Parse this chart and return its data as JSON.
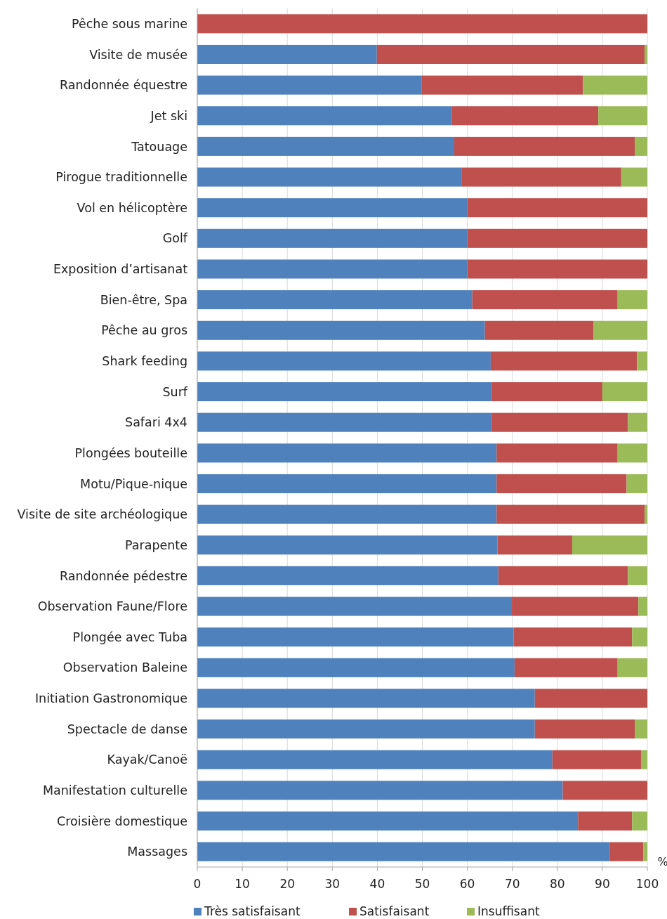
{
  "chart_data": {
    "type": "bar",
    "orientation": "horizontal",
    "stacked": true,
    "xlabel": "%",
    "categories": [
      "Pêche sous marine",
      "Visite de musée",
      "Randonnée équestre",
      "Jet ski",
      "Tatouage",
      "Pirogue traditionnelle",
      "Vol en hélicoptère",
      "Golf",
      "Exposition d’artisanat",
      "Bien-être, Spa",
      "Pêche au gros",
      "Shark feeding",
      "Surf",
      "Safari 4x4",
      "Plongées bouteille",
      "Motu/Pique-nique",
      "Visite de site archéologique",
      "Parapente",
      "Randonnée pédestre",
      "Observation Faune/Flore",
      "Plongée avec Tuba",
      "Observation Baleine",
      "Initiation Gastronomique",
      "Spectacle de danse",
      "Kayak/Canoë",
      "Manifestation culturelle",
      "Croisière domestique",
      "Massages"
    ],
    "series": [
      {
        "name": "Très satisfaisant",
        "color": "#4f81bd",
        "values": [
          0,
          39.9,
          49.9,
          56.6,
          57.1,
          58.8,
          60,
          60,
          60,
          61.1,
          63.9,
          65.2,
          65.4,
          65.4,
          66.5,
          66.5,
          66.5,
          66.7,
          66.9,
          69.9,
          70.3,
          70.5,
          75,
          75,
          78.9,
          81.2,
          84.6,
          91.7
        ]
      },
      {
        "name": "Satisfaisant",
        "color": "#c0504d",
        "values": [
          100,
          59.5,
          35.8,
          32.5,
          40.1,
          35.4,
          40,
          40,
          40,
          32.3,
          24.1,
          32.5,
          24.6,
          30.3,
          26.9,
          28.9,
          32.9,
          16.6,
          28.8,
          28.1,
          26.3,
          22.9,
          25,
          22.2,
          19.7,
          18.8,
          12.0,
          7.4
        ]
      },
      {
        "name": "Insuffisant",
        "color": "#9bbb59",
        "values": [
          0,
          0.6,
          14.3,
          10.9,
          2.8,
          5.8,
          0,
          0,
          0,
          6.6,
          12.0,
          2.3,
          10.0,
          4.3,
          6.6,
          4.6,
          0.6,
          16.7,
          4.3,
          2.0,
          3.4,
          6.6,
          0,
          2.8,
          1.4,
          0,
          3.4,
          0.9
        ]
      }
    ],
    "xlim": [
      0,
      100
    ],
    "xticks": [
      0,
      10,
      20,
      30,
      40,
      50,
      60,
      70,
      80,
      90,
      100
    ],
    "grid": "x",
    "legend": "bottom"
  }
}
